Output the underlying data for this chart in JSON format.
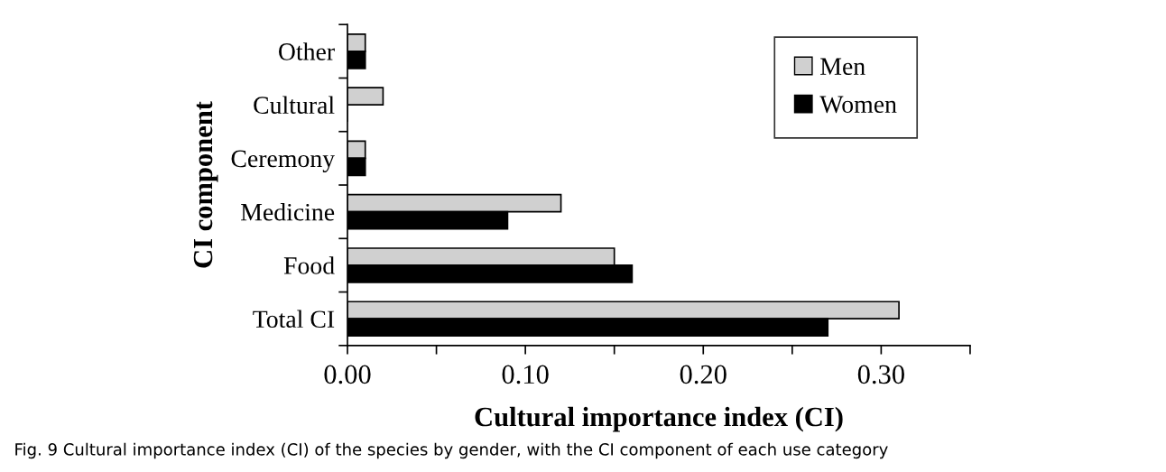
{
  "chart_data": {
    "type": "bar",
    "orientation": "horizontal",
    "categories": [
      "Other",
      "Cultural",
      "Ceremony",
      "Medicine",
      "Food",
      "Total CI"
    ],
    "series": [
      {
        "name": "Men",
        "color": "#d0d0d0",
        "values": [
          0.01,
          0.02,
          0.01,
          0.12,
          0.15,
          0.31
        ]
      },
      {
        "name": "Women",
        "color": "#000000",
        "values": [
          0.01,
          0,
          0.01,
          0.09,
          0.16,
          0.27
        ]
      }
    ],
    "xlabel": "Cultural importance index (CI)",
    "ylabel": "CI component",
    "xlim": [
      0,
      0.35
    ],
    "xticks": [
      {
        "value": 0,
        "label": "0.00"
      },
      {
        "value": 0.05,
        "label": null
      },
      {
        "value": 0.1,
        "label": "0.10"
      },
      {
        "value": 0.15,
        "label": null
      },
      {
        "value": 0.2,
        "label": "0.20"
      },
      {
        "value": 0.25,
        "label": null
      },
      {
        "value": 0.3,
        "label": "0.30"
      },
      {
        "value": 0.35,
        "label": null
      }
    ],
    "legend": "top right",
    "grid": false,
    "annotations": [
      "Fig. 9 Cultural importance index (CI) of the species by gender, with the CI component of each use category"
    ]
  }
}
